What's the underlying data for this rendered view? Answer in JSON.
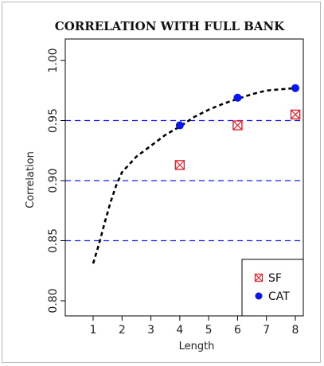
{
  "chart_data": {
    "type": "scatter",
    "title": "CORRELATION WITH FULL BANK",
    "xlabel": "Length",
    "ylabel": "Correlation",
    "xlim": [
      1,
      8
    ],
    "ylim": [
      0.8,
      1.0
    ],
    "xticks": [
      "1",
      "2",
      "3",
      "4",
      "5",
      "6",
      "7",
      "8"
    ],
    "yticks": [
      "0.80",
      "0.85",
      "0.90",
      "0.95",
      "1.00"
    ],
    "reference_lines": [
      0.85,
      0.9,
      0.95
    ],
    "legend_position": "bottom-right",
    "colors": {
      "sf": "#e8202a",
      "cat": "#0a16f2",
      "curve": "#000000",
      "reference": "#1c1cf2"
    },
    "series": [
      {
        "name": "SF",
        "marker": "boxed-x",
        "x": [
          4,
          6,
          8
        ],
        "y": [
          0.913,
          0.946,
          0.955
        ]
      },
      {
        "name": "CAT",
        "marker": "filled-circle",
        "x": [
          4,
          6,
          8
        ],
        "y": [
          0.946,
          0.969,
          0.977
        ]
      }
    ],
    "curve": {
      "style": "dashed",
      "x": [
        1.0,
        1.2,
        1.4,
        1.6,
        1.8,
        2.0,
        2.5,
        3.0,
        3.5,
        4.0,
        4.5,
        5.0,
        5.5,
        6.0,
        6.5,
        7.0,
        7.5,
        8.0
      ],
      "y": [
        0.831,
        0.847,
        0.865,
        0.882,
        0.896,
        0.907,
        0.92,
        0.929,
        0.938,
        0.945,
        0.953,
        0.959,
        0.964,
        0.968,
        0.972,
        0.975,
        0.976,
        0.977
      ]
    }
  }
}
